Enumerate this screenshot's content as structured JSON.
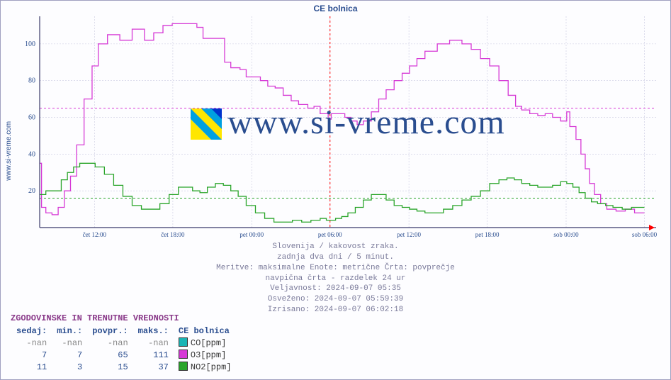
{
  "title": "CE bolnica",
  "ylabel": "www.si-vreme.com",
  "watermark_text": "www.si-vreme.com",
  "logo": {
    "colors": [
      "#ffe600",
      "#00a0e0",
      "#0033cc"
    ]
  },
  "chart": {
    "type": "step-line",
    "background": "#fdfdff",
    "grid_color": "#c8c8e0",
    "axis_color": "#3a3a6a",
    "y": {
      "min": 0,
      "max": 115,
      "ticks": [
        20,
        40,
        60,
        80,
        100
      ]
    },
    "x": {
      "labels": [
        "čet 12:00",
        "čet 18:00",
        "pet 00:00",
        "pet 06:00",
        "pet 12:00",
        "pet 18:00",
        "sob 00:00",
        "sob 06:00"
      ],
      "positions": [
        0.089,
        0.216,
        0.344,
        0.471,
        0.599,
        0.726,
        0.854,
        0.981
      ],
      "now_pos": 0.471,
      "now_color": "#ff0000",
      "arrow_color": "#ff0000"
    },
    "reference_lines": [
      {
        "axis": "y",
        "value": 65,
        "color": "#d63ad6",
        "dash": "3,3"
      },
      {
        "axis": "y",
        "value": 16,
        "color": "#2aa52a",
        "dash": "3,3"
      }
    ],
    "series": [
      {
        "name": "CO[ppm]",
        "color": "#1ab5b5",
        "swatch": "#1ab5b5",
        "points": []
      },
      {
        "name": "O3[ppm]",
        "color": "#d63ad6",
        "swatch": "#d63ad6",
        "points": [
          [
            0.0,
            35
          ],
          [
            0.003,
            11
          ],
          [
            0.01,
            8
          ],
          [
            0.02,
            7
          ],
          [
            0.03,
            11
          ],
          [
            0.04,
            20
          ],
          [
            0.05,
            28
          ],
          [
            0.06,
            45
          ],
          [
            0.072,
            70
          ],
          [
            0.085,
            88
          ],
          [
            0.095,
            100
          ],
          [
            0.11,
            105
          ],
          [
            0.13,
            102
          ],
          [
            0.15,
            108
          ],
          [
            0.17,
            102
          ],
          [
            0.185,
            106
          ],
          [
            0.2,
            110
          ],
          [
            0.215,
            111
          ],
          [
            0.23,
            111
          ],
          [
            0.255,
            109
          ],
          [
            0.265,
            103
          ],
          [
            0.3,
            90
          ],
          [
            0.31,
            87
          ],
          [
            0.325,
            86
          ],
          [
            0.335,
            82
          ],
          [
            0.345,
            82
          ],
          [
            0.358,
            80
          ],
          [
            0.37,
            77
          ],
          [
            0.382,
            76
          ],
          [
            0.395,
            72
          ],
          [
            0.408,
            69
          ],
          [
            0.42,
            67
          ],
          [
            0.435,
            65
          ],
          [
            0.445,
            66
          ],
          [
            0.455,
            62
          ],
          [
            0.468,
            59
          ],
          [
            0.473,
            62
          ],
          [
            0.485,
            62
          ],
          [
            0.495,
            60
          ],
          [
            0.505,
            58
          ],
          [
            0.515,
            56
          ],
          [
            0.525,
            58
          ],
          [
            0.538,
            63
          ],
          [
            0.55,
            70
          ],
          [
            0.562,
            75
          ],
          [
            0.575,
            80
          ],
          [
            0.588,
            84
          ],
          [
            0.6,
            88
          ],
          [
            0.612,
            92
          ],
          [
            0.625,
            96
          ],
          [
            0.645,
            100
          ],
          [
            0.665,
            102
          ],
          [
            0.685,
            100
          ],
          [
            0.7,
            97
          ],
          [
            0.715,
            92
          ],
          [
            0.73,
            88
          ],
          [
            0.745,
            80
          ],
          [
            0.76,
            72
          ],
          [
            0.772,
            66
          ],
          [
            0.782,
            64
          ],
          [
            0.795,
            62
          ],
          [
            0.808,
            61
          ],
          [
            0.82,
            62
          ],
          [
            0.832,
            60
          ],
          [
            0.845,
            58
          ],
          [
            0.855,
            63
          ],
          [
            0.86,
            55
          ],
          [
            0.87,
            48
          ],
          [
            0.878,
            40
          ],
          [
            0.885,
            32
          ],
          [
            0.892,
            24
          ],
          [
            0.9,
            18
          ],
          [
            0.91,
            13
          ],
          [
            0.92,
            10
          ],
          [
            0.935,
            9
          ],
          [
            0.95,
            10
          ],
          [
            0.965,
            8
          ],
          [
            0.981,
            8
          ]
        ]
      },
      {
        "name": "NO2[ppm]",
        "color": "#2aa52a",
        "swatch": "#2aa52a",
        "points": [
          [
            0.0,
            18
          ],
          [
            0.01,
            20
          ],
          [
            0.025,
            20
          ],
          [
            0.035,
            26
          ],
          [
            0.045,
            30
          ],
          [
            0.055,
            33
          ],
          [
            0.065,
            35
          ],
          [
            0.078,
            35
          ],
          [
            0.09,
            33
          ],
          [
            0.105,
            29
          ],
          [
            0.12,
            23
          ],
          [
            0.135,
            17
          ],
          [
            0.15,
            12
          ],
          [
            0.165,
            10
          ],
          [
            0.18,
            10
          ],
          [
            0.195,
            13
          ],
          [
            0.21,
            18
          ],
          [
            0.225,
            22
          ],
          [
            0.235,
            22
          ],
          [
            0.248,
            20
          ],
          [
            0.26,
            19
          ],
          [
            0.272,
            22
          ],
          [
            0.285,
            24
          ],
          [
            0.298,
            23
          ],
          [
            0.31,
            20
          ],
          [
            0.322,
            17
          ],
          [
            0.335,
            12
          ],
          [
            0.35,
            8
          ],
          [
            0.365,
            5
          ],
          [
            0.38,
            3
          ],
          [
            0.395,
            3
          ],
          [
            0.41,
            4
          ],
          [
            0.425,
            3
          ],
          [
            0.44,
            4
          ],
          [
            0.455,
            5
          ],
          [
            0.465,
            4
          ],
          [
            0.472,
            4
          ],
          [
            0.48,
            5
          ],
          [
            0.49,
            6
          ],
          [
            0.5,
            8
          ],
          [
            0.512,
            11
          ],
          [
            0.525,
            15
          ],
          [
            0.538,
            18
          ],
          [
            0.55,
            18
          ],
          [
            0.562,
            15
          ],
          [
            0.575,
            12
          ],
          [
            0.588,
            11
          ],
          [
            0.6,
            10
          ],
          [
            0.612,
            9
          ],
          [
            0.625,
            8
          ],
          [
            0.64,
            8
          ],
          [
            0.655,
            10
          ],
          [
            0.67,
            12
          ],
          [
            0.685,
            15
          ],
          [
            0.7,
            17
          ],
          [
            0.715,
            20
          ],
          [
            0.73,
            24
          ],
          [
            0.745,
            26
          ],
          [
            0.758,
            27
          ],
          [
            0.77,
            26
          ],
          [
            0.782,
            24
          ],
          [
            0.795,
            23
          ],
          [
            0.808,
            22
          ],
          [
            0.82,
            22
          ],
          [
            0.832,
            23
          ],
          [
            0.845,
            25
          ],
          [
            0.855,
            24
          ],
          [
            0.865,
            22
          ],
          [
            0.875,
            19
          ],
          [
            0.885,
            16
          ],
          [
            0.895,
            14
          ],
          [
            0.905,
            13
          ],
          [
            0.918,
            12
          ],
          [
            0.93,
            11
          ],
          [
            0.945,
            10
          ],
          [
            0.96,
            11
          ],
          [
            0.975,
            11
          ],
          [
            0.981,
            11
          ]
        ]
      }
    ]
  },
  "caption": {
    "lines": [
      "Slovenija / kakovost zraka.",
      "zadnja dva dni / 5 minut.",
      "Meritve: maksimalne  Enote: metrične  Črta: povprečje",
      "navpična črta - razdelek 24 ur",
      "Veljavnost: 2024-09-07 05:35",
      "Osveženo: 2024-09-07 05:59:39",
      "Izrisano: 2024-09-07 06:02:18"
    ]
  },
  "table": {
    "title": "ZGODOVINSKE IN TRENUTNE VREDNOSTI",
    "columns": [
      "sedaj:",
      "min.:",
      "povpr.:",
      "maks.:",
      "CE bolnica"
    ],
    "rows": [
      {
        "cells": [
          "-nan",
          "-nan",
          "-nan",
          "-nan"
        ],
        "nan": true,
        "swatch": "#1ab5b5",
        "label": "CO[ppm]"
      },
      {
        "cells": [
          "7",
          "7",
          "65",
          "111"
        ],
        "nan": false,
        "swatch": "#d63ad6",
        "label": "O3[ppm]"
      },
      {
        "cells": [
          "11",
          "3",
          "15",
          "37"
        ],
        "nan": false,
        "swatch": "#2aa52a",
        "label": "NO2[ppm]"
      }
    ]
  }
}
